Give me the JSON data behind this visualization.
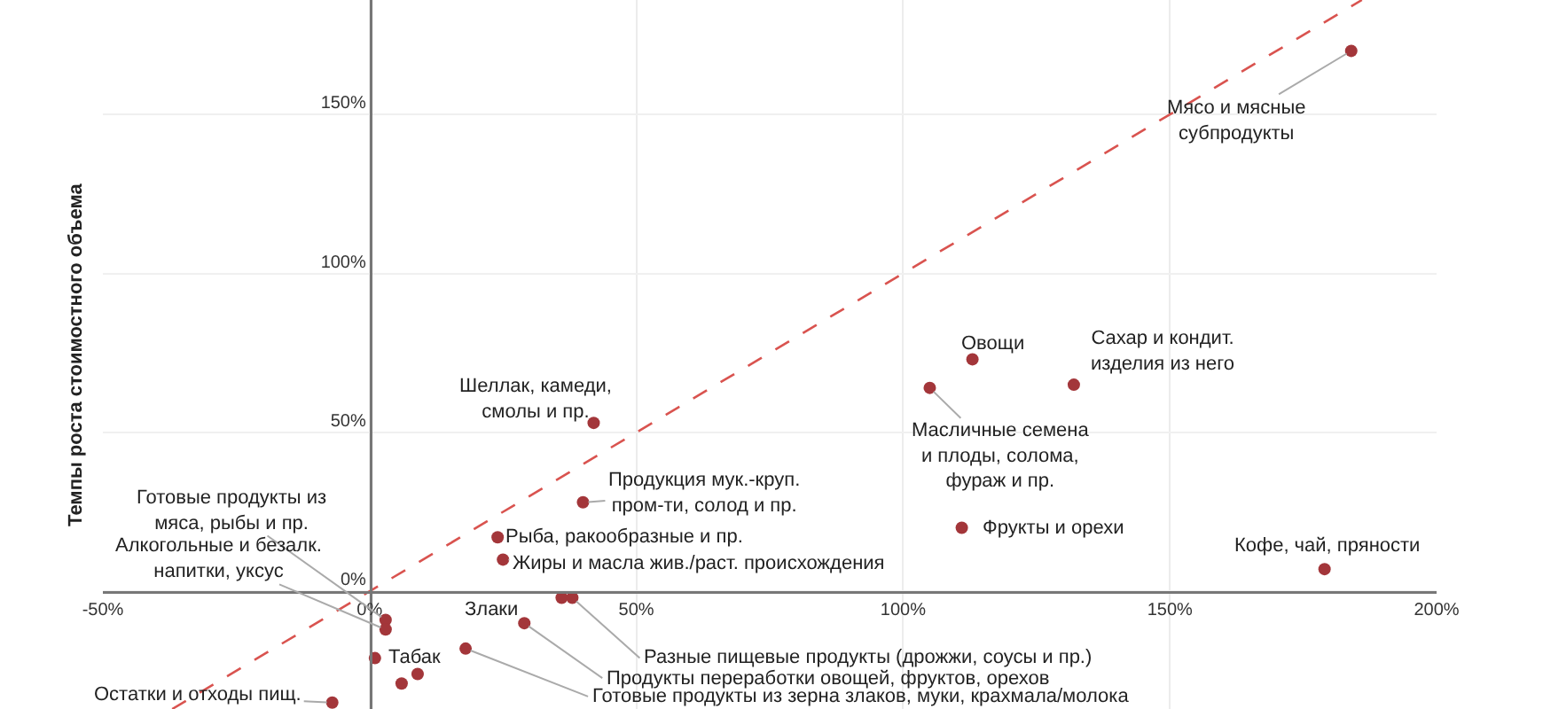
{
  "chart_data": {
    "type": "scatter",
    "ylabel": "Темпы роста стоимостного объема",
    "xlim": [
      -50,
      200
    ],
    "ylim": [
      -37,
      186
    ],
    "xticks": [
      {
        "value": -50,
        "label": "-50%"
      },
      {
        "value": 0,
        "label": "0%"
      },
      {
        "value": 50,
        "label": "50%"
      },
      {
        "value": 100,
        "label": "100%"
      },
      {
        "value": 150,
        "label": "150%"
      },
      {
        "value": 200,
        "label": "200%"
      }
    ],
    "yticks": [
      {
        "value": 0,
        "label": "0%"
      },
      {
        "value": 50,
        "label": "50%"
      },
      {
        "value": 100,
        "label": "100%"
      },
      {
        "value": 150,
        "label": "150%"
      }
    ],
    "grid": true,
    "marker": "circle",
    "series": [
      {
        "color": "#a3363a",
        "x": [
          184,
          113,
          132,
          105,
          111,
          179,
          42,
          40,
          24,
          25,
          36,
          38,
          29,
          18,
          3,
          3,
          1,
          -7,
          9,
          6
        ],
        "values": [
          170,
          73,
          65,
          64,
          20,
          7,
          53,
          28,
          17,
          10,
          -2,
          -2,
          -10,
          -18,
          -9,
          -12,
          -21,
          -35,
          -26,
          -29
        ]
      },
      {
        "type": "line",
        "color": "#d9534f",
        "line_style": "dashed",
        "marker": "none",
        "x": [
          -37,
          186
        ],
        "values": [
          -37,
          186
        ]
      }
    ],
    "annotations": [
      {
        "text": "Мясо и мясные\nсубпродукты",
        "x": 184,
        "y": 170
      },
      {
        "text": "Овощи",
        "x": 113,
        "y": 73
      },
      {
        "text": "Сахар и кондит.\nизделия из него",
        "x": 132,
        "y": 65
      },
      {
        "text": "Масличные семена\nи плоды, солома,\nфураж и пр.",
        "x": 105,
        "y": 64
      },
      {
        "text": "Фрукты и орехи",
        "x": 111,
        "y": 20
      },
      {
        "text": "Кофе, чай, пряности",
        "x": 179,
        "y": 7
      },
      {
        "text": "Шеллак, камеди,\nсмолы и пр.",
        "x": 42,
        "y": 53
      },
      {
        "text": "Продукция мук.-круп.\nпром-ти, солод и пр.",
        "x": 40,
        "y": 28
      },
      {
        "text": "Рыба, ракообразные и пр.",
        "x": 24,
        "y": 17
      },
      {
        "text": "Жиры и масла жив./раст. происхождения",
        "x": 25,
        "y": 10
      },
      {
        "text": "Злаки",
        "x": 36,
        "y": -2
      },
      {
        "text": "Разные пищевые продукты (дрожжи, соусы и пр.)",
        "x": 38,
        "y": -2
      },
      {
        "text": "Продукты переработки овощей, фруктов, орехов",
        "x": 29,
        "y": -10
      },
      {
        "text": "Готовые продукты из зерна злаков, муки, крахмала/молока",
        "x": 18,
        "y": -18
      },
      {
        "text": "Готовые продукты из\nмяса, рыбы и пр.",
        "x": 3,
        "y": -9
      },
      {
        "text": "Алкогольные и безалк.\nнапитки, уксус",
        "x": 3,
        "y": -12
      },
      {
        "text": "Табак",
        "x": 1,
        "y": -21
      },
      {
        "text": "Остатки и отходы пищ.",
        "x": -7,
        "y": -35
      }
    ]
  }
}
